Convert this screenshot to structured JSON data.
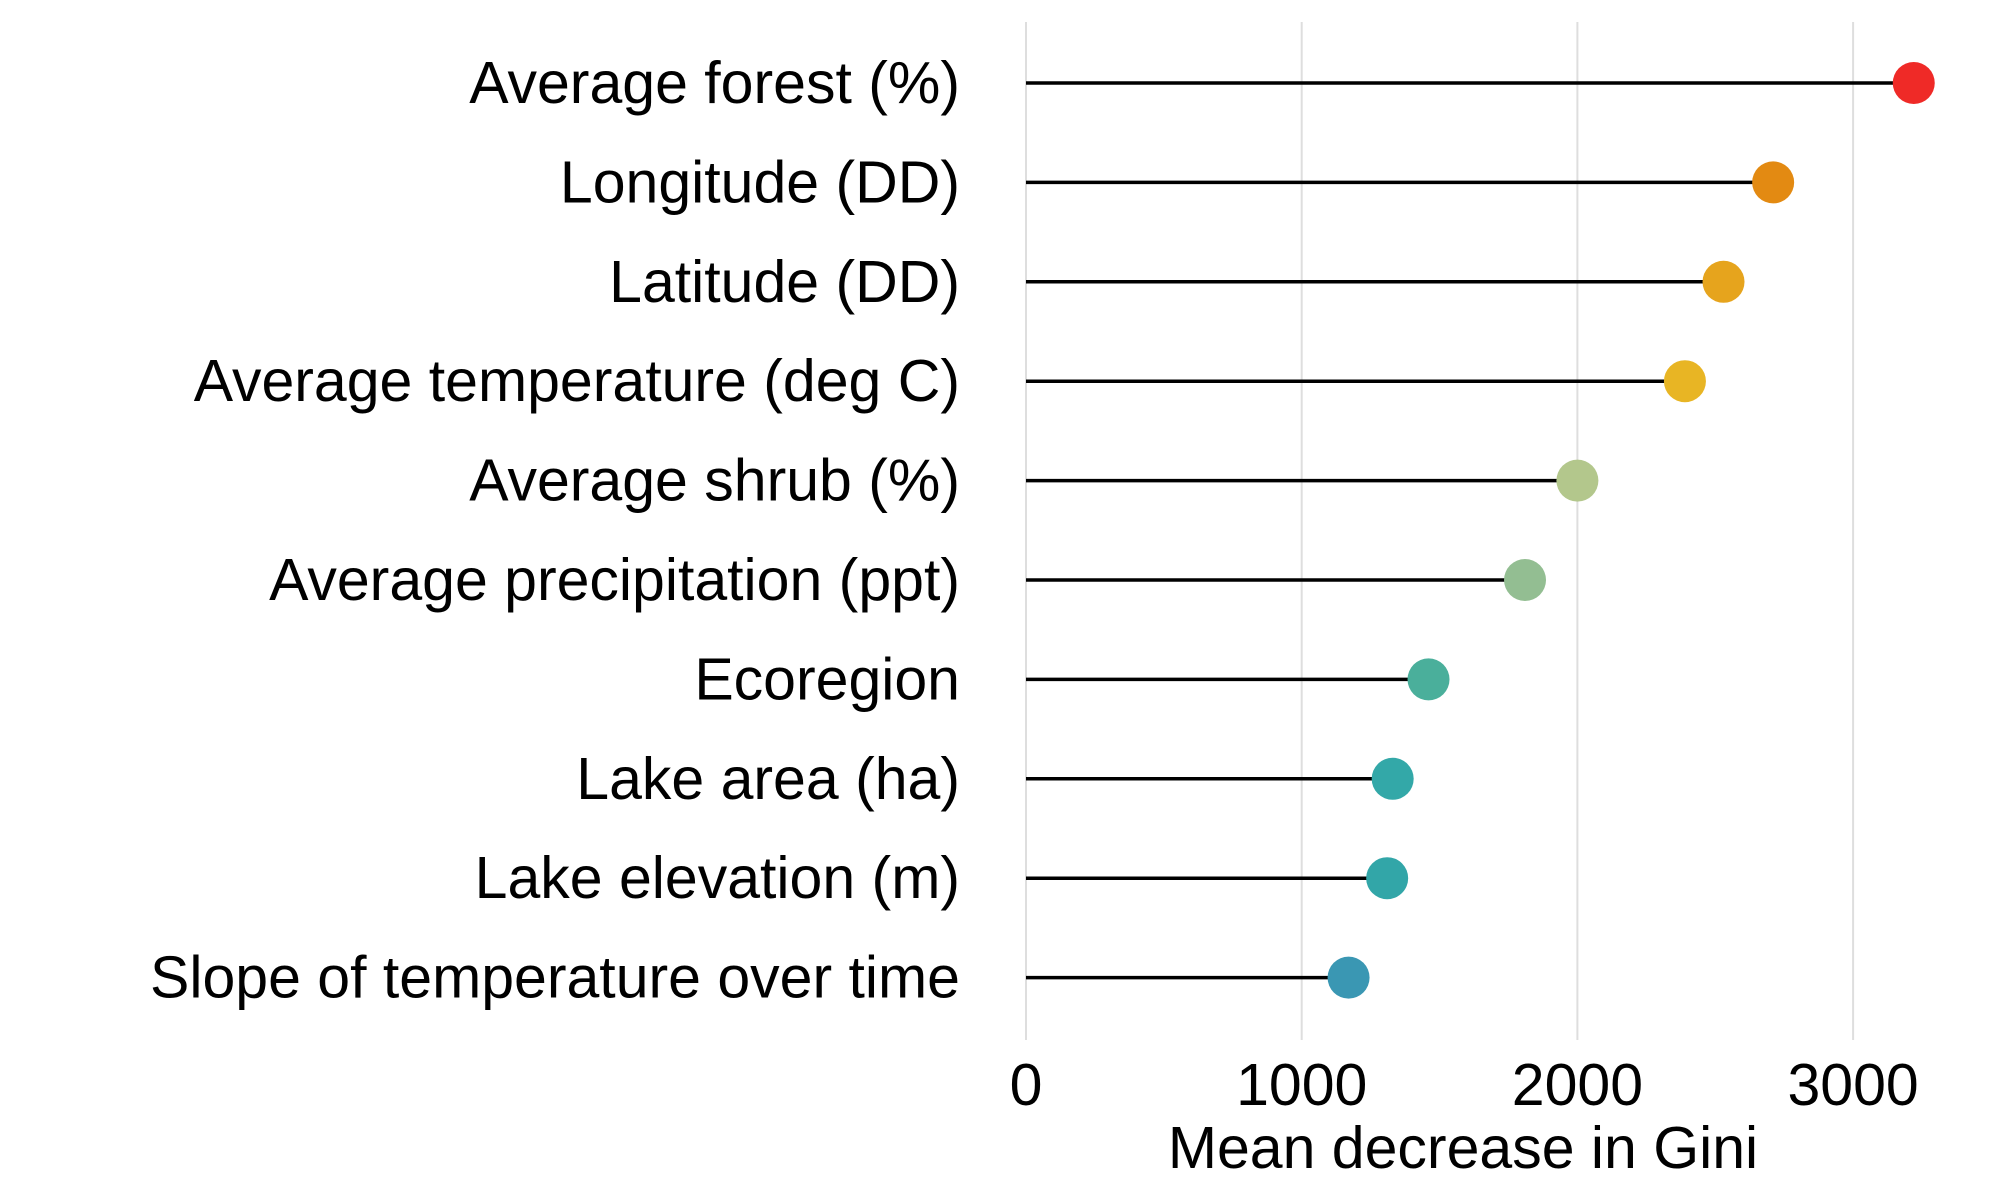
{
  "chart_data": {
    "type": "lollipop",
    "orientation": "horizontal",
    "title": "",
    "xlabel": "Mean decrease in Gini",
    "ylabel": "",
    "xlim": [
      0,
      3300
    ],
    "xticks": [
      0,
      1000,
      2000,
      3000
    ],
    "grid": "vertical major lines",
    "legend": "none",
    "categories": [
      "Average forest (%)",
      "Longitude (DD)",
      "Latitude (DD)",
      "Average temperature (deg C)",
      "Average shrub (%)",
      "Average precipitation (ppt)",
      "Ecoregion",
      "Lake area (ha)",
      "Lake elevation (m)",
      "Slope of temperature over time"
    ],
    "values": [
      3220,
      2710,
      2530,
      2390,
      2000,
      1810,
      1460,
      1330,
      1310,
      1170
    ],
    "colors": [
      "#ef2a27",
      "#e38a12",
      "#e6a41d",
      "#e8b524",
      "#b3c78c",
      "#93be92",
      "#4aaf9b",
      "#33a8a8",
      "#32a6a8",
      "#3a97b3"
    ]
  }
}
